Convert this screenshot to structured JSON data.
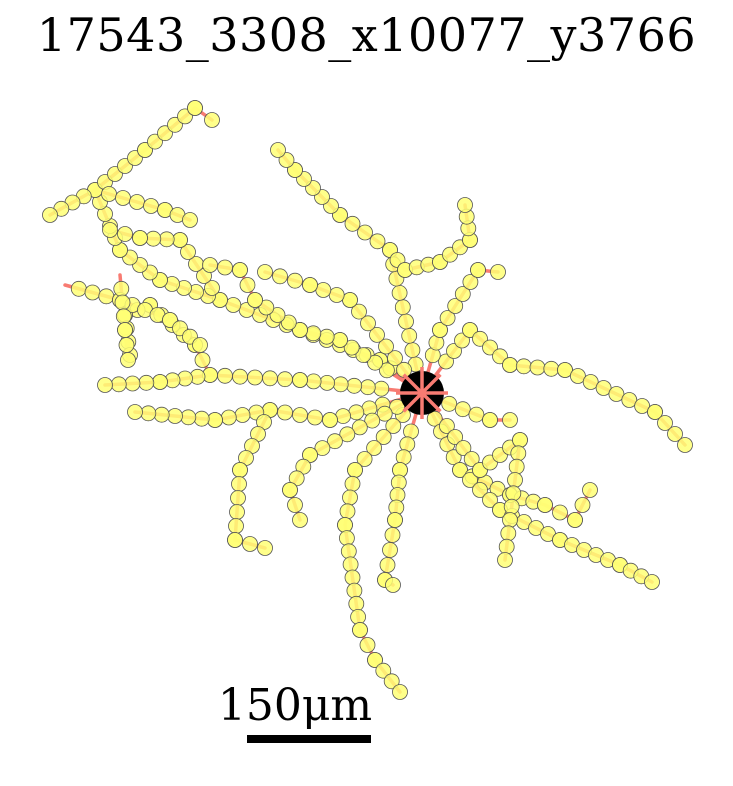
{
  "title": "17543_3308_x10077_y3766",
  "scale": {
    "label": "150μm"
  },
  "colors": {
    "branch": "#f87b72",
    "node_fill": "#ffff75",
    "node_stroke": "#555555",
    "soma": "#000000"
  }
}
